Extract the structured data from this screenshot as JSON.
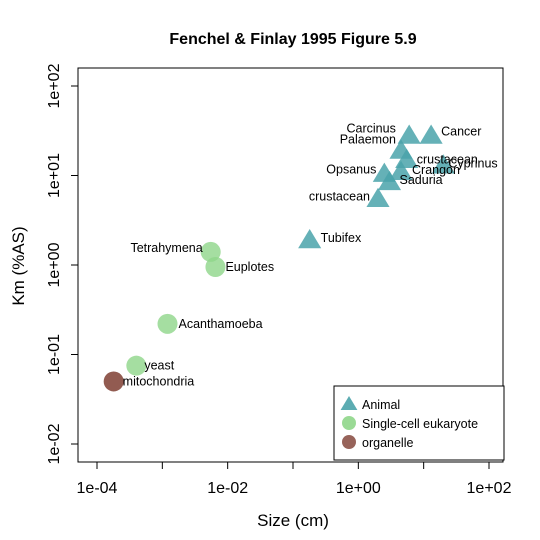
{
  "chart_data": {
    "type": "scatter",
    "title": "Fenchel & Finlay 1995 Figure 5.9",
    "xlabel": "Size (cm)",
    "ylabel": "Km (%AS)",
    "x_scale": "log",
    "y_scale": "log",
    "xlim": [
      0.0001,
      100
    ],
    "ylim": [
      0.01,
      100
    ],
    "x_ticks": [
      "1e-04",
      "1e-02",
      "1e+00",
      "1e+02"
    ],
    "y_ticks": [
      "1e-02",
      "1e-01",
      "1e+00",
      "1e+01",
      "1e+02"
    ],
    "grid": false,
    "legend_position": "bottom-right",
    "legend": [
      "Animal",
      "Single-cell eukaryote",
      "organelle"
    ],
    "colors": {
      "Animal": "#4aa3aa",
      "Single-cell eukaryote": "#8fd68a",
      "organelle": "#8c5248"
    },
    "points": [
      {
        "label": "Carcinus",
        "group": "Animal",
        "x": 6.0,
        "y": 28
      },
      {
        "label": "Cancer",
        "group": "Animal",
        "x": 13.0,
        "y": 28
      },
      {
        "label": "Palaemon",
        "group": "Animal",
        "x": 4.5,
        "y": 19
      },
      {
        "label": "crustacean",
        "group": "Animal",
        "x": 5.5,
        "y": 15
      },
      {
        "label": "Cyprinus",
        "group": "Animal",
        "x": 20.0,
        "y": 13
      },
      {
        "label": "Crangon",
        "group": "Animal",
        "x": 4.5,
        "y": 11
      },
      {
        "label": "Opsanus",
        "group": "Animal",
        "x": 2.5,
        "y": 10.5
      },
      {
        "label": "Saduria",
        "group": "Animal",
        "x": 3.0,
        "y": 8.5
      },
      {
        "label": "crustacean",
        "group": "Animal",
        "x": 2.0,
        "y": 5.5
      },
      {
        "label": "Tubifex",
        "group": "Animal",
        "x": 0.18,
        "y": 1.9
      },
      {
        "label": "Tetrahymena",
        "group": "Single-cell eukaryote",
        "x": 0.0055,
        "y": 1.4
      },
      {
        "label": "Euplotes",
        "group": "Single-cell eukaryote",
        "x": 0.0065,
        "y": 0.95
      },
      {
        "label": "Acanthamoeba",
        "group": "Single-cell eukaryote",
        "x": 0.0012,
        "y": 0.22
      },
      {
        "label": "yeast",
        "group": "Single-cell eukaryote",
        "x": 0.0004,
        "y": 0.075
      },
      {
        "label": "mitochondria",
        "group": "organelle",
        "x": 0.00018,
        "y": 0.05
      }
    ]
  }
}
